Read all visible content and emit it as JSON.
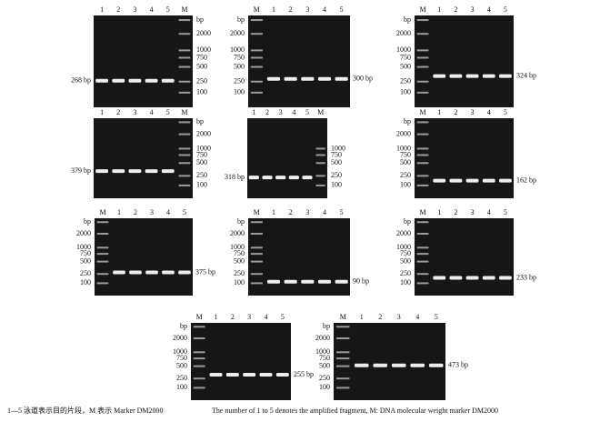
{
  "panels": [
    {
      "lanes": [
        "1",
        "2",
        "3",
        "4",
        "5",
        "M"
      ],
      "marker": [
        "bp",
        "2000",
        "1000",
        "750",
        "500",
        "250",
        "100"
      ],
      "fragment": "268 bp"
    },
    {
      "lanes": [
        "M",
        "1",
        "2",
        "3",
        "4",
        "5"
      ],
      "marker": [
        "bp",
        "2000",
        "1000",
        "750",
        "500",
        "250",
        "100"
      ],
      "fragment": "300 bp"
    },
    {
      "lanes": [
        "M",
        "1",
        "2",
        "3",
        "4",
        "5"
      ],
      "marker": [
        "bp",
        "2000",
        "1000",
        "750",
        "500",
        "250",
        "100"
      ],
      "fragment": "324 bp"
    },
    {
      "lanes": [
        "1",
        "2",
        "3",
        "4",
        "5",
        "M"
      ],
      "marker": [
        "bp",
        "2000",
        "1000",
        "750",
        "500",
        "250",
        "100"
      ],
      "fragment": "379 bp"
    },
    {
      "lanes": [
        "1",
        "2",
        "3",
        "4",
        "5",
        "M"
      ],
      "marker": [
        "1000",
        "750",
        "500",
        "250",
        "100"
      ],
      "fragment": "318 bp"
    },
    {
      "lanes": [
        "M",
        "1",
        "2",
        "3",
        "4",
        "5"
      ],
      "marker": [
        "bp",
        "2000",
        "1000",
        "750",
        "500",
        "250",
        "100"
      ],
      "fragment": "162 bp"
    },
    {
      "lanes": [
        "M",
        "1",
        "2",
        "3",
        "4",
        "5"
      ],
      "marker": [
        "bp",
        "2000",
        "1000",
        "750",
        "500",
        "250",
        "100"
      ],
      "fragment": "375 bp"
    },
    {
      "lanes": [
        "M",
        "1",
        "2",
        "3",
        "4",
        "5"
      ],
      "marker": [
        "bp",
        "2000",
        "1000",
        "750",
        "500",
        "250",
        "100"
      ],
      "fragment": "90 bp"
    },
    {
      "lanes": [
        "M",
        "1",
        "2",
        "3",
        "4",
        "5"
      ],
      "marker": [
        "bp",
        "2000",
        "1000",
        "750",
        "500",
        "250",
        "100"
      ],
      "fragment": "233 bp"
    },
    {
      "lanes": [
        "M",
        "1",
        "2",
        "3",
        "4",
        "5"
      ],
      "marker": [
        "bp",
        "2000",
        "1000",
        "750",
        "500",
        "250",
        "100"
      ],
      "fragment": "255 bp"
    },
    {
      "lanes": [
        "M",
        "1",
        "2",
        "3",
        "4",
        "5"
      ],
      "marker": [
        "bp",
        "2000",
        "1000",
        "750",
        "500",
        "250",
        "100"
      ],
      "fragment": "473 bp"
    }
  ],
  "caption": {
    "cn": "1—5 泳道表示目的片段，M 表示 Marker DM2000",
    "en": "The number of 1 to 5 denotes the amplified fragment, M: DNA molecular weight marker DM2000"
  }
}
